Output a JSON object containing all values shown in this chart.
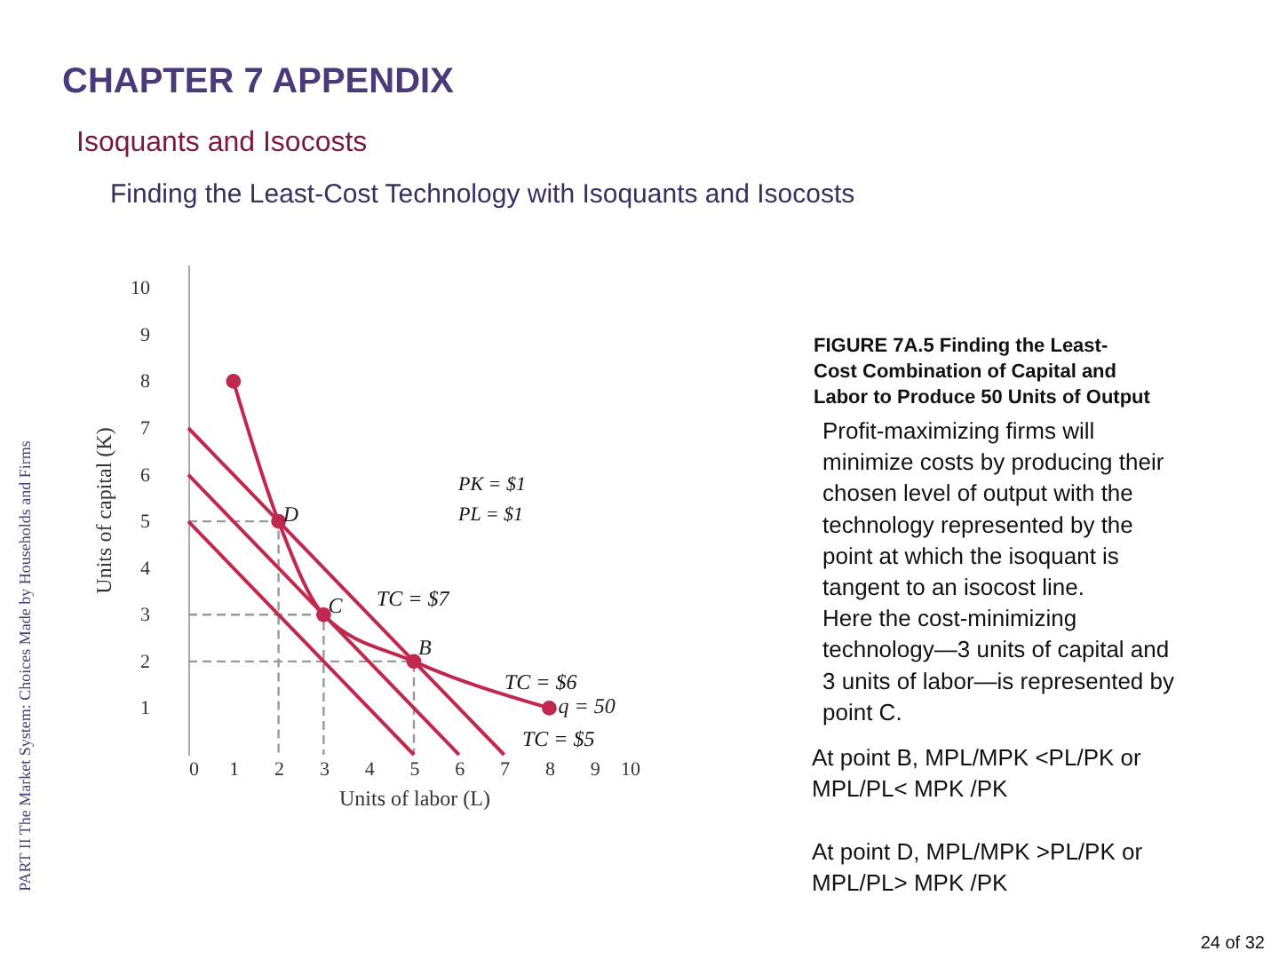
{
  "chart_data": {
    "type": "line",
    "title": "CHAPTER 7 APPENDIX",
    "subtitle": "Isoquants and Isocosts",
    "xlabel": "Units of labor (L)",
    "ylabel": "Units of capital (K)",
    "xlim": [
      0,
      10
    ],
    "ylim": [
      0,
      10.5
    ],
    "xticks": [
      0,
      1,
      2,
      3,
      4,
      5,
      6,
      7,
      8,
      9,
      10
    ],
    "yticks": [
      1,
      2,
      3,
      4,
      5,
      6,
      7,
      8,
      9,
      10
    ],
    "series": [
      {
        "color": "#999999",
        "x": [
          0,
          2,
          2
        ],
        "values": [
          5,
          5,
          0
        ],
        "line_style": "dashed",
        "marker": "none"
      },
      {
        "color": "#999999",
        "x": [
          0,
          3,
          3
        ],
        "values": [
          3,
          3,
          0
        ],
        "line_style": "dashed",
        "marker": "none"
      },
      {
        "color": "#999999",
        "x": [
          0,
          5,
          5
        ],
        "values": [
          2,
          2,
          0
        ],
        "line_style": "dashed",
        "marker": "none"
      },
      {
        "color": "#c0284e",
        "x": [
          0,
          5
        ],
        "values": [
          5,
          0
        ],
        "line_style": "solid",
        "marker": "none"
      },
      {
        "color": "#c0284e",
        "x": [
          0,
          6
        ],
        "values": [
          6,
          0
        ],
        "line_style": "solid",
        "marker": "none"
      },
      {
        "color": "#c0284e",
        "x": [
          0,
          7
        ],
        "values": [
          7,
          0
        ],
        "line_style": "solid",
        "marker": "none"
      },
      {
        "color": "#c0284e",
        "x": [
          1,
          2,
          3,
          5,
          8
        ],
        "values": [
          8,
          5,
          3,
          2,
          1
        ],
        "line_style": "solid",
        "marker": "circle"
      }
    ],
    "annotations": [
      {
        "text": "D",
        "x": 2.1,
        "y": 5.15
      },
      {
        "text": "C",
        "x": 3.1,
        "y": 3.2
      },
      {
        "text": "B",
        "x": 5.1,
        "y": 2.3
      },
      {
        "text": "q = 50",
        "x": 8.2,
        "y": 1.05
      },
      "TC = $7",
      "TC = $6",
      "TC = $5",
      "PK = $1",
      "PL = $1",
      "Finding the Least-Cost Technology with Isoquants and Isocosts",
      "PART II The Market System: Choices Made by Households and Firms",
      "FIGURE 7A.5  Finding the Least-\nCost Combination of Capital and\nLabor to Produce 50 Units of Output",
      "Profit-maximizing firms will\nminimize costs by producing their\nchosen level of output with the\ntechnology represented by the\npoint at which the isoquant is\ntangent to an isocost line.\nHere the cost-minimizing\ntechnology—3 units of capital and\n3 units of labor—is represented by\npoint C.",
      "At point B, MPL/MPK <PL/PK or\nMPL/PL< MPK /PK",
      "At point D, MPL/MPK >PL/PK or\nMPL/PL> MPK /PK",
      "24 of 32"
    ]
  }
}
